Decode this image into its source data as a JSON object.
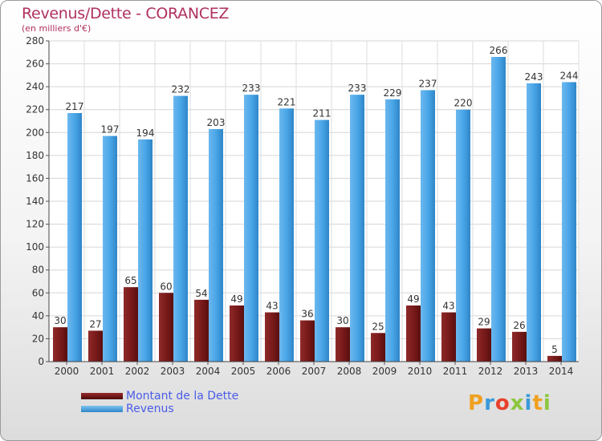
{
  "title": "Revenus/Dette - CORANCEZ",
  "subtitle": "(en milliers d'€)",
  "chart_data": {
    "type": "bar",
    "categories": [
      "2000",
      "2001",
      "2002",
      "2003",
      "2004",
      "2005",
      "2006",
      "2007",
      "2008",
      "2009",
      "2010",
      "2011",
      "2012",
      "2013",
      "2014"
    ],
    "series": [
      {
        "name": "Montant de la Dette",
        "color": "#7a1a1a",
        "values": [
          30,
          27,
          65,
          60,
          54,
          49,
          43,
          36,
          30,
          25,
          49,
          43,
          29,
          26,
          5
        ]
      },
      {
        "name": "Revenus",
        "color": "#3f9fe4",
        "values": [
          217,
          197,
          194,
          232,
          203,
          233,
          221,
          211,
          233,
          229,
          237,
          220,
          266,
          243,
          244
        ]
      }
    ],
    "ylim": [
      0,
      280
    ],
    "yticks": [
      0,
      20,
      40,
      60,
      80,
      100,
      120,
      140,
      160,
      180,
      200,
      220,
      240,
      260,
      280
    ],
    "grid": true,
    "legend_position": "bottom-left"
  },
  "legend": {
    "dette_label": "Montant de la Dette",
    "revenus_label": "Revenus"
  },
  "logo": {
    "letters": [
      "P",
      "r",
      "o",
      "x",
      "i",
      "t",
      "i"
    ],
    "colors": [
      "#f0a020",
      "#3a9ad9",
      "#e8402a",
      "#8cc63f",
      "#3a9ad9",
      "#f0a020",
      "#8cc63f"
    ]
  }
}
